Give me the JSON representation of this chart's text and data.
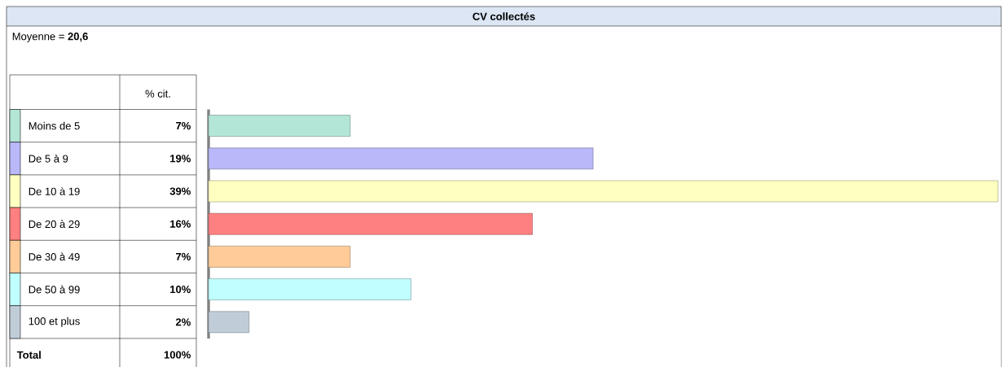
{
  "chart_data": {
    "type": "bar",
    "orientation": "horizontal",
    "title": "CV collectés",
    "categories": [
      "Moins de 5",
      "De 5 à 9",
      "De 10 à 19",
      "De 20 à 29",
      "De 30 à 49",
      "De 50 à 99",
      "100 et plus"
    ],
    "values": [
      7,
      19,
      39,
      16,
      7,
      10,
      2
    ],
    "colors": [
      "#b3e6d6",
      "#b9b9f9",
      "#ffffc0",
      "#ff8080",
      "#ffcc99",
      "#c0ffff",
      "#c0cdd9"
    ],
    "value_labels": [
      "7%",
      "19%",
      "39%",
      "16%",
      "7%",
      "10%",
      "2%"
    ],
    "annotations": [
      "Moyenne = **20,6**",
      "% cit.",
      "Total",
      "100%"
    ]
  }
}
